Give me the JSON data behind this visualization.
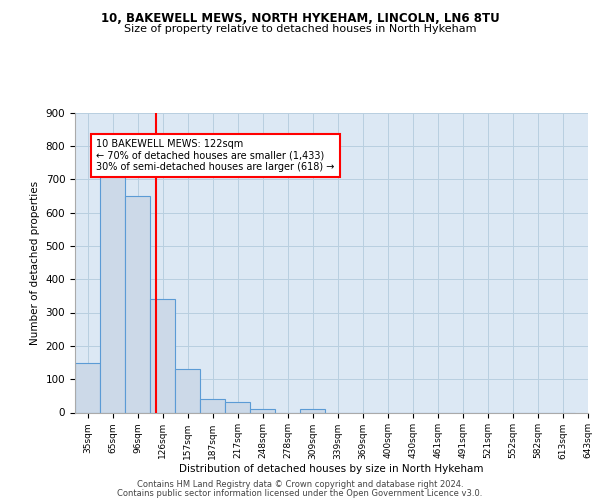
{
  "title1": "10, BAKEWELL MEWS, NORTH HYKEHAM, LINCOLN, LN6 8TU",
  "title2": "Size of property relative to detached houses in North Hykeham",
  "xlabel": "Distribution of detached houses by size in North Hykeham",
  "ylabel": "Number of detached properties",
  "bin_labels": [
    "35sqm",
    "65sqm",
    "96sqm",
    "126sqm",
    "157sqm",
    "187sqm",
    "217sqm",
    "248sqm",
    "278sqm",
    "309sqm",
    "339sqm",
    "369sqm",
    "400sqm",
    "430sqm",
    "461sqm",
    "491sqm",
    "521sqm",
    "552sqm",
    "582sqm",
    "613sqm",
    "643sqm"
  ],
  "bar_heights": [
    150,
    720,
    650,
    340,
    130,
    42,
    32,
    12,
    0,
    10,
    0,
    0,
    0,
    0,
    0,
    0,
    0,
    0,
    0,
    0
  ],
  "bar_color": "#ccd9e8",
  "bar_edge_color": "#5b9bd5",
  "grid_color": "#b8cfe0",
  "bg_color": "#dce8f4",
  "red_line_x": 2.73,
  "annotation_line1": "10 BAKEWELL MEWS: 122sqm",
  "annotation_line2": "← 70% of detached houses are smaller (1,433)",
  "annotation_line3": "30% of semi-detached houses are larger (618) →",
  "annotation_box_color": "white",
  "annotation_box_edge": "red",
  "footer1": "Contains HM Land Registry data © Crown copyright and database right 2024.",
  "footer2": "Contains public sector information licensed under the Open Government Licence v3.0.",
  "ylim": [
    0,
    900
  ],
  "yticks": [
    0,
    100,
    200,
    300,
    400,
    500,
    600,
    700,
    800,
    900
  ]
}
